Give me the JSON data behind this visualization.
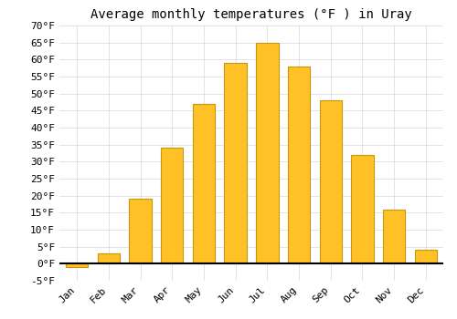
{
  "title": "Average monthly temperatures (°F ) in Uray",
  "months": [
    "Jan",
    "Feb",
    "Mar",
    "Apr",
    "May",
    "Jun",
    "Jul",
    "Aug",
    "Sep",
    "Oct",
    "Nov",
    "Dec"
  ],
  "values": [
    -1,
    3,
    19,
    34,
    47,
    59,
    65,
    58,
    48,
    32,
    16,
    4
  ],
  "bar_color": "#FFC125",
  "bar_edge_color": "#C8960C",
  "background_color": "#FFFFFF",
  "plot_background": "#FFFFFF",
  "ylim": [
    -5,
    70
  ],
  "yticks": [
    -5,
    0,
    5,
    10,
    15,
    20,
    25,
    30,
    35,
    40,
    45,
    50,
    55,
    60,
    65,
    70
  ],
  "grid_color": "#D8D8D8",
  "title_fontsize": 10,
  "tick_fontsize": 8,
  "tick_font": "monospace"
}
